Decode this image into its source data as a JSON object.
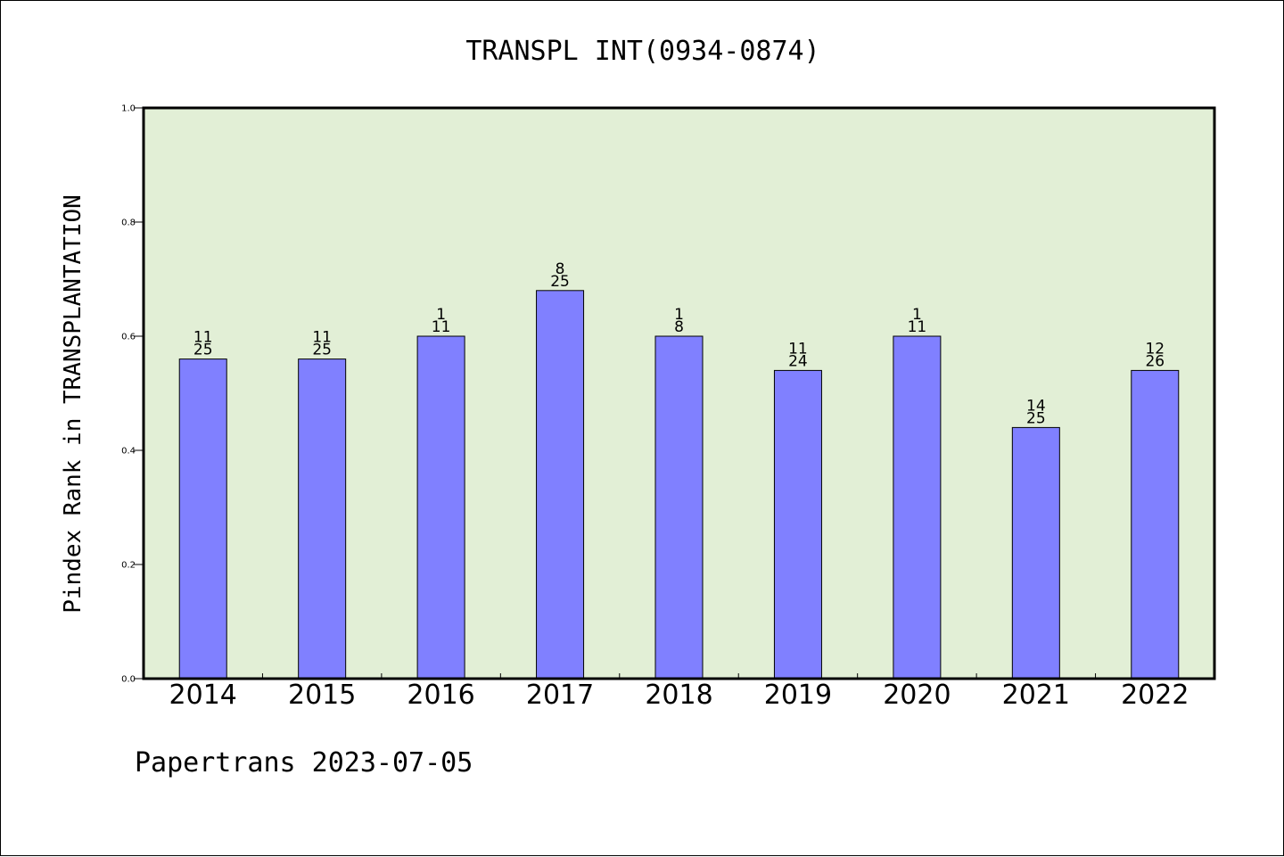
{
  "chart_data": {
    "type": "bar",
    "title": "TRANSPL INT(0934-0874)",
    "ylabel": "Pindex Rank in TRANSPLANTATION",
    "xlabel": "",
    "ylim": [
      0.0,
      1.0
    ],
    "yticks": [
      "0.0",
      "0.2",
      "0.4",
      "0.6",
      "0.8",
      "1.0"
    ],
    "grid": false,
    "colors": {
      "bar": "#8080ff",
      "plot_background": "#e2efd6",
      "frame": "#000000"
    },
    "categories": [
      "2014",
      "2015",
      "2016",
      "2017",
      "2018",
      "2019",
      "2020",
      "2021",
      "2022"
    ],
    "values": [
      0.56,
      0.56,
      0.6,
      0.68,
      0.6,
      0.54,
      0.6,
      0.44,
      0.54
    ],
    "annotations": [
      {
        "rank": "11",
        "total": "25"
      },
      {
        "rank": "11",
        "total": "25"
      },
      {
        "rank": "1",
        "total": "11"
      },
      {
        "rank": "8",
        "total": "25"
      },
      {
        "rank": "1",
        "total": "8"
      },
      {
        "rank": "11",
        "total": "24"
      },
      {
        "rank": "1",
        "total": "11"
      },
      {
        "rank": "14",
        "total": "25"
      },
      {
        "rank": "12",
        "total": "26"
      }
    ]
  },
  "footer": "Papertrans 2023-07-05"
}
